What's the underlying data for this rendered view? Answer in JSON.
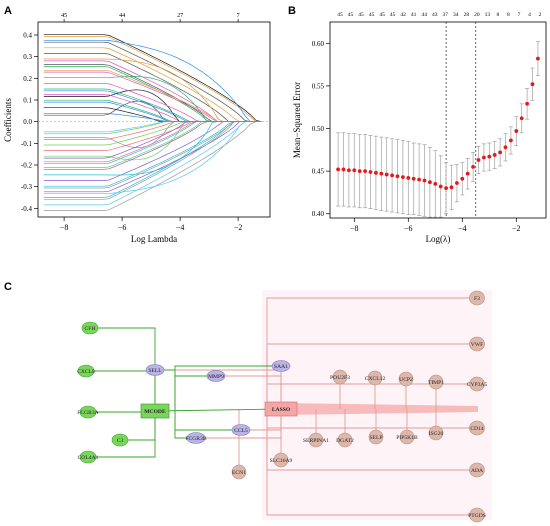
{
  "panels": {
    "a": "A",
    "b": "B",
    "c": "C"
  },
  "chart_data": [
    {
      "type": "line",
      "panel": "A",
      "xlabel": "Log Lambda",
      "ylabel": "Coefficients",
      "xlim": [
        -8.9,
        -0.9
      ],
      "ylim": [
        -0.44,
        0.46
      ],
      "x_ticks": [
        -8,
        -6,
        -4,
        -2
      ],
      "y_ticks": [
        -0.4,
        -0.3,
        -0.2,
        -0.1,
        0.0,
        0.1,
        0.2,
        0.3,
        0.4
      ],
      "x_tick_labels": [
        "−8",
        "−6",
        "−4",
        "−2"
      ],
      "y_tick_labels": [
        "-0.4",
        "-0.3",
        "-0.2",
        "-0.1",
        "0.0",
        "0.1",
        "0.2",
        "0.3",
        "0.4"
      ],
      "top_axis_positions": [
        -8,
        -6,
        -4,
        -2
      ],
      "top_axis_labels": [
        "45",
        "44",
        "27",
        "7"
      ],
      "grid": false,
      "series_count": 45,
      "example_series": [
        {
          "start": 0.41,
          "end_x": -1.2
        },
        {
          "start": -0.41,
          "end_x": -1.2
        },
        {
          "start": 0.34,
          "end_x": -1.9
        },
        {
          "start": -0.34,
          "end_x": -2.6
        },
        {
          "start": 0.22,
          "end_x": -3.3
        },
        {
          "start": -0.26,
          "end_x": -3.8
        }
      ]
    },
    {
      "type": "scatter",
      "panel": "B",
      "xlabel": "Log(λ)",
      "ylabel": "Mean−Squared Error",
      "xlim": [
        -8.9,
        -0.9
      ],
      "ylim": [
        0.395,
        0.625
      ],
      "x_ticks": [
        -8,
        -6,
        -4,
        -2
      ],
      "y_ticks": [
        0.4,
        0.45,
        0.5,
        0.55,
        0.6
      ],
      "x_tick_labels": [
        "−8",
        "−6",
        "−4",
        "−2"
      ],
      "y_tick_labels": [
        "0.40",
        "0.45",
        "0.50",
        "0.55",
        "0.60"
      ],
      "top_axis_labels": [
        "45",
        "45",
        "45",
        "45",
        "45",
        "45",
        "42",
        "41",
        "44",
        "43",
        "37",
        "34",
        "28",
        "20",
        "13",
        "8",
        "8",
        "7",
        "4",
        "2"
      ],
      "top_axis_positions": [
        -8.6,
        -8.1,
        -7.6,
        -7.1,
        -6.6,
        -6.1,
        -5.6,
        -5.1,
        -4.6,
        -4.1,
        -3.6,
        -3.1,
        -2.6,
        -2.1,
        -1.6,
        -1.1,
        -0.95,
        -0.8,
        -0.65,
        -0.5
      ],
      "lambda_min": -4.6,
      "lambda_1se": -3.5,
      "point_color": "#e31a1c",
      "error_bar_color": "#a0a0a0",
      "lambda_line_style": "dashed",
      "x": [
        -8.6,
        -8.4,
        -8.2,
        -8.0,
        -7.8,
        -7.6,
        -7.4,
        -7.2,
        -7.0,
        -6.8,
        -6.6,
        -6.4,
        -6.2,
        -6.0,
        -5.8,
        -5.6,
        -5.4,
        -5.2,
        -5.0,
        -4.8,
        -4.6,
        -4.4,
        -4.2,
        -4.0,
        -3.8,
        -3.6,
        -3.4,
        -3.2,
        -3.0,
        -2.8,
        -2.6,
        -2.4,
        -2.2,
        -2.0,
        -1.8,
        -1.6,
        -1.4,
        -1.2
      ],
      "y": [
        0.452,
        0.452,
        0.451,
        0.451,
        0.45,
        0.45,
        0.449,
        0.448,
        0.447,
        0.446,
        0.445,
        0.444,
        0.443,
        0.442,
        0.441,
        0.44,
        0.439,
        0.437,
        0.435,
        0.432,
        0.43,
        0.431,
        0.436,
        0.441,
        0.447,
        0.455,
        0.463,
        0.466,
        0.467,
        0.469,
        0.472,
        0.478,
        0.486,
        0.497,
        0.512,
        0.529,
        0.552,
        0.582
      ],
      "err": [
        0.043,
        0.043,
        0.043,
        0.043,
        0.043,
        0.043,
        0.043,
        0.043,
        0.043,
        0.043,
        0.043,
        0.043,
        0.043,
        0.043,
        0.042,
        0.042,
        0.042,
        0.041,
        0.039,
        0.036,
        0.03,
        0.026,
        0.022,
        0.019,
        0.018,
        0.017,
        0.016,
        0.016,
        0.016,
        0.016,
        0.016,
        0.016,
        0.016,
        0.017,
        0.017,
        0.018,
        0.019,
        0.02
      ]
    }
  ],
  "network": {
    "center_mcode": "MCODE",
    "center_lasso": "LASSO",
    "green_nodes": [
      "CFH",
      "CXCL8",
      "FCGR3A",
      "C3",
      "COL4A1"
    ],
    "purple_nodes": [
      "SELL",
      "MMP9",
      "SAA1",
      "FCGR3B",
      "CCL5"
    ],
    "pink_right_nodes": [
      "F3",
      "VWF",
      "CYP3A5",
      "CD14",
      "ADA",
      "PTGDS"
    ],
    "pink_mid_nodes": [
      "POU2F3",
      "CXCL12",
      "UCP2",
      "TIMP1",
      "SERPINA1",
      "DGAT2",
      "SELP",
      "PIP5K1B",
      "ISG20",
      "SLC16A9",
      "ECN1"
    ],
    "colors": {
      "green_fill": "#7ad65a",
      "green_edge": "#3aa52b",
      "purple_fill": "#b9b3e6",
      "pink_fill": "#ddb8aa",
      "pink_edge": "#e39b95",
      "lasso_edge": "#f08c8c"
    }
  }
}
